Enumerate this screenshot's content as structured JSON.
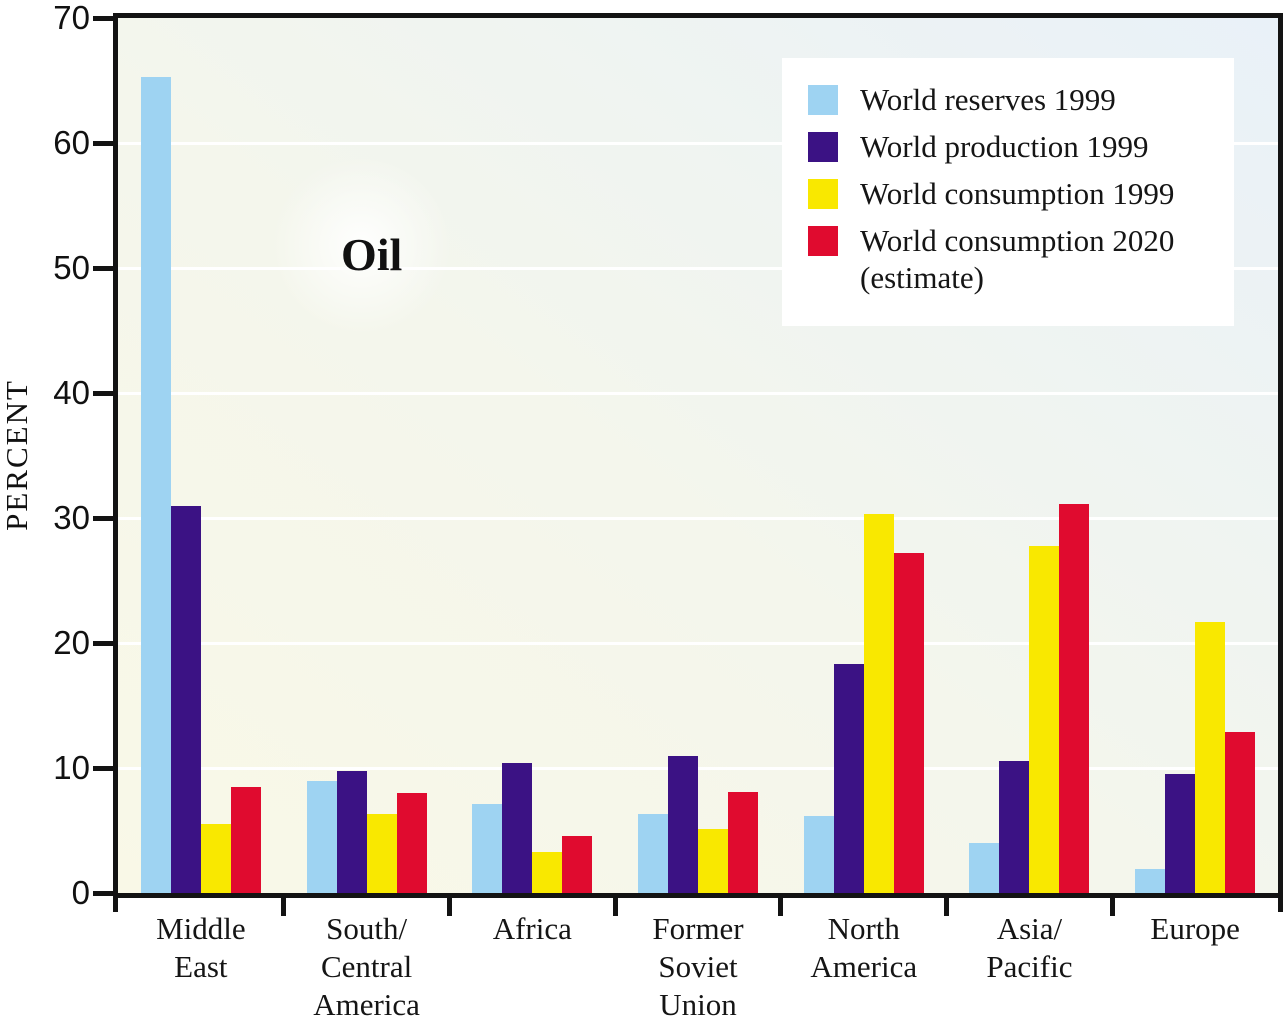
{
  "title": "Oil",
  "y_axis_label": "PERCENT",
  "legend": [
    {
      "label": "World reserves 1999",
      "label2": "",
      "color": "#9ed3f2"
    },
    {
      "label": "World production 1999",
      "label2": "",
      "color": "#3b1284"
    },
    {
      "label": "World consumption 1999",
      "label2": "",
      "color": "#f9e800"
    },
    {
      "label": "World consumption 2020",
      "label2": "(estimate)",
      "color": "#e00b2f"
    }
  ],
  "chart_data": {
    "type": "bar",
    "title": "Oil",
    "xlabel": "",
    "ylabel": "PERCENT",
    "ylim": [
      0,
      70
    ],
    "yticks": [
      0,
      10,
      20,
      30,
      40,
      50,
      60,
      70
    ],
    "grid": "horizontal white gridlines every 10",
    "legend_position": "top-right",
    "plot_background": [
      "#f9f8e7",
      "#e9f1f8"
    ],
    "categories": [
      "Middle East",
      "South/Central America",
      "Africa",
      "Former Soviet Union",
      "North America",
      "Asia/Pacific",
      "Europe"
    ],
    "category_lines": [
      [
        "Middle",
        "East"
      ],
      [
        "South/",
        "Central",
        "America"
      ],
      [
        "Africa"
      ],
      [
        "Former",
        "Soviet",
        "Union"
      ],
      [
        "North",
        "America"
      ],
      [
        "Asia/",
        "Pacific"
      ],
      [
        "Europe"
      ]
    ],
    "series": [
      {
        "name": "World reserves 1999",
        "color": "#9ed3f2",
        "values": [
          65.3,
          9.0,
          7.1,
          6.3,
          6.2,
          4.0,
          1.9
        ]
      },
      {
        "name": "World production 1999",
        "color": "#3b1284",
        "values": [
          31.0,
          9.8,
          10.4,
          11.0,
          18.3,
          10.6,
          9.5
        ]
      },
      {
        "name": "World consumption 1999",
        "color": "#f9e800",
        "values": [
          5.5,
          6.3,
          3.3,
          5.1,
          30.3,
          27.8,
          21.7
        ]
      },
      {
        "name": "World consumption 2020 (estimate)",
        "color": "#e00b2f",
        "values": [
          8.5,
          8.0,
          4.6,
          8.1,
          27.2,
          31.1,
          12.9
        ]
      }
    ]
  }
}
